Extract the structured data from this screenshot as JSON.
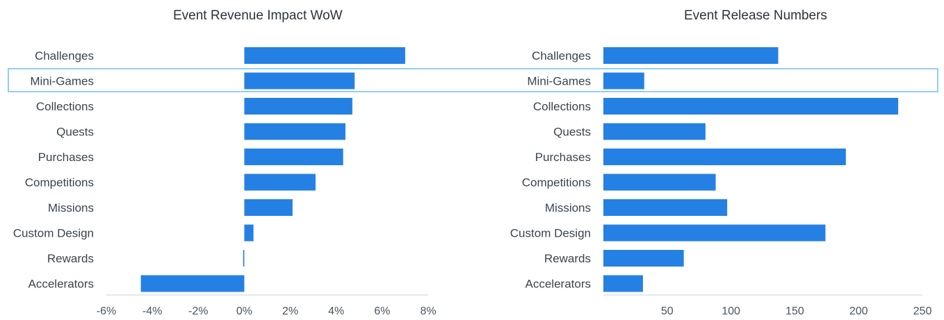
{
  "colors": {
    "bar": "#2580e3",
    "highlight": "#8fd0f2",
    "axis": "#c9d2dc"
  },
  "highlighted_category": "Mini-Games",
  "chart_data": [
    {
      "type": "bar",
      "orientation": "horizontal",
      "title": "Event Revenue Impact WoW",
      "categories": [
        "Challenges",
        "Mini-Games",
        "Collections",
        "Quests",
        "Purchases",
        "Competitions",
        "Missions",
        "Custom Design",
        "Rewards",
        "Accelerators"
      ],
      "series": [
        {
          "values": [
            7.0,
            4.8,
            4.7,
            4.4,
            4.3,
            3.1,
            2.1,
            0.4,
            -0.05,
            -4.5
          ]
        }
      ],
      "xlim": [
        -6,
        8
      ],
      "xticks": [
        -6,
        -4,
        -2,
        0,
        2,
        4,
        6,
        8
      ],
      "tick_labels": [
        "-6%",
        "-4%",
        "-2%",
        "0%",
        "2%",
        "4%",
        "6%",
        "8%"
      ],
      "unit": "%"
    },
    {
      "type": "bar",
      "orientation": "horizontal",
      "title": "Event Release Numbers",
      "categories": [
        "Challenges",
        "Mini-Games",
        "Collections",
        "Quests",
        "Purchases",
        "Competitions",
        "Missions",
        "Custom Design",
        "Rewards",
        "Accelerators"
      ],
      "series": [
        {
          "values": [
            137,
            32,
            231,
            80,
            190,
            88,
            97,
            174,
            63,
            31
          ]
        }
      ],
      "xlim": [
        0,
        250
      ],
      "xticks": [
        50,
        100,
        150,
        200,
        250
      ],
      "tick_labels": [
        "50",
        "100",
        "150",
        "200",
        "250"
      ]
    }
  ]
}
